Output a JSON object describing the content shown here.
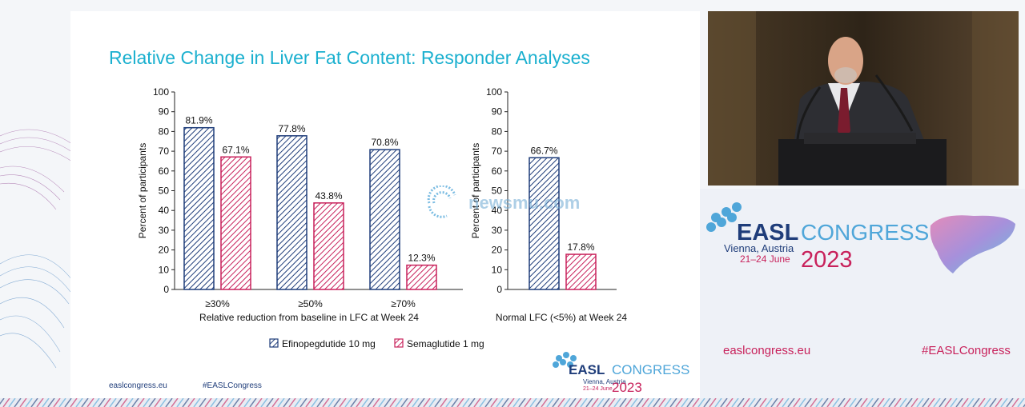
{
  "slide": {
    "title": "Relative Change in Liver Fat Content: Responder Analyses",
    "footer_site": "easlcongress.eu",
    "footer_tag": "#EASLCongress",
    "watermark": "newsmu.com",
    "logo": {
      "brand": "EASL",
      "congress": "CONGRESS",
      "city": "Vienna, Austria",
      "dates": "21–24 June",
      "year": "2023"
    }
  },
  "chart_data": [
    {
      "type": "bar",
      "ylabel": "Percent of participants",
      "xlabel": "Relative reduction from baseline in LFC at Week 24",
      "ylim": [
        0,
        100
      ],
      "yticks": [
        0,
        10,
        20,
        30,
        40,
        50,
        60,
        70,
        80,
        90,
        100
      ],
      "categories": [
        "≥30%",
        "≥50%",
        "≥70%"
      ],
      "series": [
        {
          "name": "Efinopegdutide 10 mg",
          "values": [
            81.9,
            77.8,
            70.8
          ],
          "labels": [
            "81.9%",
            "77.8%",
            "70.8%"
          ],
          "color": "#1f3d7a"
        },
        {
          "name": "Semaglutide 1 mg",
          "values": [
            67.1,
            43.8,
            12.3
          ],
          "labels": [
            "67.1%",
            "43.8%",
            "12.3%"
          ],
          "color": "#c8215b"
        }
      ]
    },
    {
      "type": "bar",
      "ylabel": "Percent of participants",
      "xlabel": "Normal LFC (<5%) at Week 24",
      "ylim": [
        0,
        100
      ],
      "yticks": [
        0,
        10,
        20,
        30,
        40,
        50,
        60,
        70,
        80,
        90,
        100
      ],
      "categories": [
        ""
      ],
      "series": [
        {
          "name": "Efinopegdutide 10 mg",
          "values": [
            66.7
          ],
          "labels": [
            "66.7%"
          ],
          "color": "#1f3d7a"
        },
        {
          "name": "Semaglutide 1 mg",
          "values": [
            17.8
          ],
          "labels": [
            "17.8%"
          ],
          "color": "#c8215b"
        }
      ]
    }
  ],
  "legend": [
    {
      "label": "Efinopegdutide 10 mg",
      "color": "#1f3d7a"
    },
    {
      "label": "Semaglutide 1 mg",
      "color": "#c8215b"
    }
  ],
  "side_panel": {
    "brand": "EASL",
    "congress": "CONGRESS",
    "city": "Vienna, Austria",
    "dates": "21–24 June",
    "year": "2023",
    "site": "easlcongress.eu",
    "hashtag": "#EASLCongress"
  },
  "colors": {
    "title": "#1bb0cf",
    "navy": "#1f3d7a",
    "crimson": "#c8215b",
    "congress_blue": "#4fa6d9"
  }
}
